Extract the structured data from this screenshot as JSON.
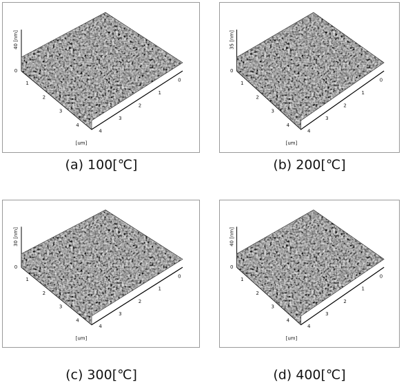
{
  "panels": [
    {
      "caption": "(a) 100[℃]",
      "z_label": "40 [nm]",
      "z_tick": "0",
      "unit": "[um]",
      "left_ticks": [
        "1",
        "2",
        "3",
        "4"
      ],
      "right_ticks": [
        "4",
        "3",
        "2",
        "1",
        "0"
      ]
    },
    {
      "caption": "(b) 200[℃]",
      "z_label": "35 [nm]",
      "z_tick": "0",
      "unit": "[um]",
      "left_ticks": [
        "1",
        "2",
        "3",
        "4"
      ],
      "right_ticks": [
        "4",
        "3",
        "2",
        "1",
        "0"
      ]
    },
    {
      "caption": "(c) 300[℃]",
      "z_label": "30 [nm]",
      "z_tick": "0",
      "unit": "[um]",
      "left_ticks": [
        "1",
        "2",
        "3",
        "4"
      ],
      "right_ticks": [
        "4",
        "3",
        "2",
        "1",
        "0"
      ]
    },
    {
      "caption": "(d) 400[℃]",
      "z_label": "40 [nm]",
      "z_tick": "0",
      "unit": "[um]",
      "left_ticks": [
        "1",
        "2",
        "3",
        "4"
      ],
      "right_ticks": [
        "4",
        "3",
        "2",
        "1",
        "0"
      ]
    }
  ]
}
